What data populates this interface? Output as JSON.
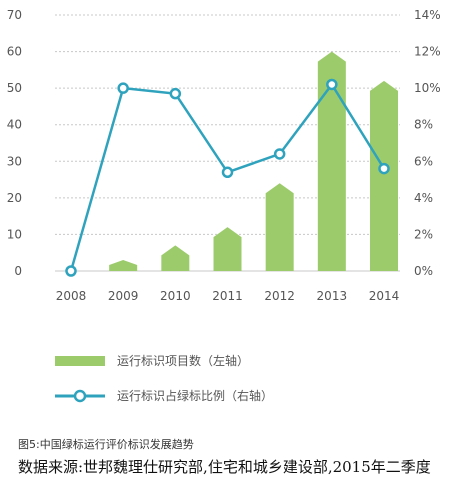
{
  "chart_data": {
    "type": "bar",
    "categories": [
      "2008",
      "2009",
      "2010",
      "2011",
      "2012",
      "2013",
      "2014"
    ],
    "series": [
      {
        "name": "运行标识项目数（左轴）",
        "type": "bar",
        "axis": "left",
        "values": [
          0,
          3,
          7,
          12,
          24,
          60,
          52
        ]
      },
      {
        "name": "运行标识占绿标比例（右轴）",
        "type": "line",
        "axis": "right",
        "values": [
          0,
          10.0,
          9.7,
          5.4,
          6.4,
          10.2,
          5.6
        ]
      }
    ],
    "y_left": {
      "lim": [
        0,
        70
      ],
      "ticks": [
        "0",
        "10",
        "20",
        "30",
        "40",
        "50",
        "60",
        "70"
      ]
    },
    "y_right": {
      "lim": [
        0,
        14
      ],
      "ticks": [
        "0%",
        "2%",
        "4%",
        "6%",
        "8%",
        "10%",
        "12%",
        "14%"
      ]
    },
    "grid": true,
    "legend": "bottom",
    "colors": {
      "bar": "#9ccb6b",
      "line": "#2fa3bd",
      "grid": "#c8c8c8"
    }
  },
  "caption": "图5:中国绿标运行评价标识发展趋势",
  "source": "数据来源:世邦魏理仕研究部,住宅和城乡建设部,2015年二季度"
}
